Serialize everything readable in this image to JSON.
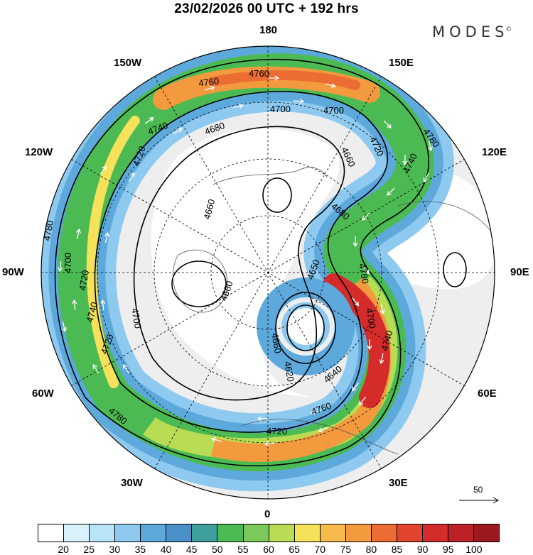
{
  "title": "23/02/2026  00 UTC  + 192 hrs",
  "logo": {
    "text": "MODES",
    "mark": "©"
  },
  "longitude_labels": [
    {
      "id": "180",
      "text": "180"
    },
    {
      "id": "150E",
      "text": "150E"
    },
    {
      "id": "120E",
      "text": "120E"
    },
    {
      "id": "90E",
      "text": "90E"
    },
    {
      "id": "60E",
      "text": "60E"
    },
    {
      "id": "30E",
      "text": "30E"
    },
    {
      "id": "0",
      "text": "0"
    },
    {
      "id": "30W",
      "text": "30W"
    },
    {
      "id": "60W",
      "text": "60W"
    },
    {
      "id": "90W",
      "text": "90W"
    },
    {
      "id": "120W",
      "text": "120W"
    },
    {
      "id": "150W",
      "text": "150W"
    }
  ],
  "contour_labels": [
    "4760",
    "4760",
    "4740",
    "4700",
    "4700",
    "4680",
    "4720",
    "4660",
    "4660",
    "4720",
    "4740",
    "4780",
    "4680",
    "4780",
    "4700",
    "4720",
    "4740",
    "4720",
    "4700",
    "4680",
    "4660",
    "4620",
    "4640",
    "4650",
    "4700",
    "4740",
    "4760",
    "4780",
    "4720",
    "4780"
  ],
  "vector_scale": "50",
  "colorbar": {
    "colors": [
      "#ffffff",
      "#d9f1fb",
      "#b9e3f7",
      "#8ecaf0",
      "#5ea9dc",
      "#4b8fc8",
      "#3f9f9c",
      "#4cba52",
      "#7ac95a",
      "#b9dc55",
      "#f6e15b",
      "#f7bb4c",
      "#f39a3e",
      "#ec6d34",
      "#e1452e",
      "#d42b2b",
      "#bd2229",
      "#9a1a20"
    ],
    "ticks": [
      "20",
      "25",
      "30",
      "35",
      "40",
      "45",
      "50",
      "55",
      "60",
      "65",
      "70",
      "75",
      "80",
      "85",
      "90",
      "95",
      "100"
    ]
  }
}
